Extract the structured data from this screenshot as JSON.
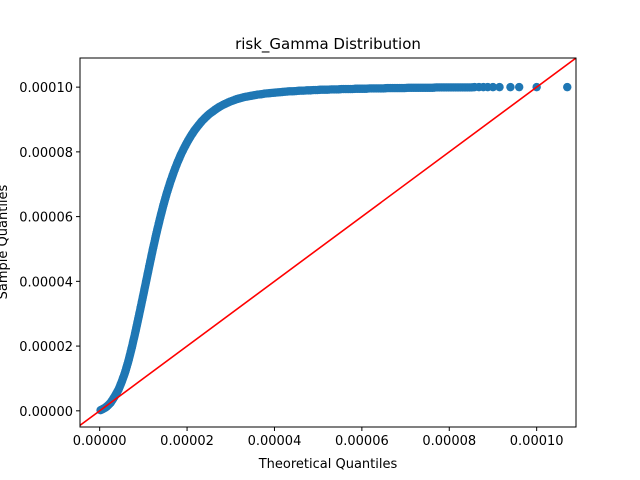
{
  "chart_data": {
    "type": "scatter",
    "title": "risk_Gamma Distribution",
    "xlabel": "Theoretical Quantiles",
    "ylabel": "Sample Quantiles",
    "xlim": [
      -4.5e-06,
      0.000109
    ],
    "ylim": [
      -5e-06,
      0.000109
    ],
    "xticks": [
      0,
      2e-05,
      4e-05,
      6e-05,
      8e-05,
      0.0001
    ],
    "xtick_labels": [
      "0.00000",
      "0.00002",
      "0.00004",
      "0.00006",
      "0.00008",
      "0.00010"
    ],
    "yticks": [
      0,
      2e-05,
      4e-05,
      6e-05,
      8e-05,
      0.0001
    ],
    "ytick_labels": [
      "0.00000",
      "0.00002",
      "0.00004",
      "0.00006",
      "0.00008",
      "0.00010"
    ],
    "grid": false,
    "legend": "none",
    "colors": {
      "points": "#1f77b4",
      "reference_line": "#ff0000"
    },
    "reference_line": {
      "slope": 1,
      "intercept": 0
    },
    "series": [
      {
        "x": [
          2e-07,
          5e-07,
          8e-07,
          1.2e-06,
          1.6e-06,
          2e-06,
          2.5e-06,
          3e-06,
          3.6e-06,
          4.3e-06,
          5e-06,
          5.8e-06,
          6.6e-06,
          7.4e-06,
          8.2e-06,
          9e-06,
          9.8e-06,
          1.06e-05,
          1.14e-05,
          1.22e-05,
          1.3e-05,
          1.38e-05,
          1.46e-05,
          1.54e-05,
          1.62e-05,
          1.7e-05,
          1.78e-05,
          1.86e-05,
          1.94e-05,
          2.02e-05,
          2.1e-05,
          2.18e-05,
          2.26e-05,
          2.34e-05,
          2.42e-05,
          2.5e-05,
          2.58e-05,
          2.66e-05,
          2.74e-05,
          2.82e-05,
          2.9e-05,
          2.98e-05,
          3.06e-05,
          3.14e-05,
          3.22e-05,
          3.3e-05,
          3.38e-05,
          3.46e-05,
          3.54e-05,
          3.62e-05,
          3.7e-05,
          3.78e-05,
          3.86e-05,
          3.94e-05,
          4.02e-05,
          4.1e-05,
          4.18e-05,
          4.26e-05,
          4.34e-05,
          4.42e-05,
          4.5e-05,
          4.58e-05,
          4.66e-05,
          4.74e-05,
          4.82e-05,
          4.9e-05,
          4.98e-05,
          5.06e-05,
          5.14e-05,
          5.22e-05,
          5.3e-05,
          5.38e-05,
          5.46e-05,
          5.54e-05,
          5.62e-05,
          5.7e-05,
          5.78e-05,
          5.86e-05,
          5.94e-05,
          6.02e-05,
          6.1e-05,
          6.18e-05,
          6.26e-05,
          6.34e-05,
          6.42e-05,
          6.5e-05,
          6.58e-05,
          6.66e-05,
          6.74e-05,
          6.82e-05,
          6.9e-05,
          6.98e-05,
          7.06e-05,
          7.14e-05,
          7.22e-05,
          7.3e-05,
          7.38e-05,
          7.46e-05,
          7.54e-05,
          7.62e-05,
          7.7e-05,
          7.78e-05,
          7.86e-05,
          7.94e-05,
          8.02e-05,
          8.1e-05,
          8.18e-05,
          8.26e-05,
          8.34e-05,
          8.42e-05,
          8.5e-05,
          8.58e-05,
          8.68e-05,
          8.78e-05,
          8.88e-05,
          9e-05,
          9.15e-05,
          9.4e-05,
          9.6e-05,
          0.0001,
          0.000107
        ],
        "y": [
          2e-07,
          4e-07,
          6e-07,
          9e-07,
          1.3e-06,
          1.8e-06,
          2.5e-06,
          3.5e-06,
          4.8e-06,
          6.5e-06,
          8.8e-06,
          1.18e-05,
          1.55e-05,
          1.98e-05,
          2.45e-05,
          2.95e-05,
          3.46e-05,
          3.98e-05,
          4.5e-05,
          5.01e-05,
          5.49e-05,
          5.94e-05,
          6.36e-05,
          6.74e-05,
          7.08e-05,
          7.39e-05,
          7.67e-05,
          7.92e-05,
          8.14e-05,
          8.34e-05,
          8.52e-05,
          8.68e-05,
          8.82e-05,
          8.95e-05,
          9.06e-05,
          9.16e-05,
          9.24e-05,
          9.32e-05,
          9.39e-05,
          9.45e-05,
          9.5e-05,
          9.55e-05,
          9.59e-05,
          9.63e-05,
          9.66e-05,
          9.69e-05,
          9.71e-05,
          9.73e-05,
          9.75e-05,
          9.77e-05,
          9.78e-05,
          9.8e-05,
          9.81e-05,
          9.82e-05,
          9.83e-05,
          9.84e-05,
          9.85e-05,
          9.86e-05,
          9.87e-05,
          9.87e-05,
          9.88e-05,
          9.89e-05,
          9.89e-05,
          9.9e-05,
          9.9e-05,
          9.91e-05,
          9.91e-05,
          9.92e-05,
          9.92e-05,
          9.92e-05,
          9.93e-05,
          9.93e-05,
          9.93e-05,
          9.94e-05,
          9.94e-05,
          9.94e-05,
          9.94e-05,
          9.95e-05,
          9.95e-05,
          9.95e-05,
          9.95e-05,
          9.96e-05,
          9.96e-05,
          9.96e-05,
          9.96e-05,
          9.96e-05,
          9.97e-05,
          9.97e-05,
          9.97e-05,
          9.97e-05,
          9.97e-05,
          9.97e-05,
          9.98e-05,
          9.98e-05,
          9.98e-05,
          9.98e-05,
          9.98e-05,
          9.98e-05,
          9.98e-05,
          9.98e-05,
          9.99e-05,
          9.99e-05,
          9.99e-05,
          9.99e-05,
          9.99e-05,
          9.99e-05,
          9.99e-05,
          9.99e-05,
          9.99e-05,
          9.99e-05,
          9.99e-05,
          0.0001,
          0.0001,
          0.0001,
          0.0001,
          0.0001,
          0.0001,
          0.0001,
          0.0001,
          0.0001,
          0.0001
        ]
      }
    ]
  }
}
